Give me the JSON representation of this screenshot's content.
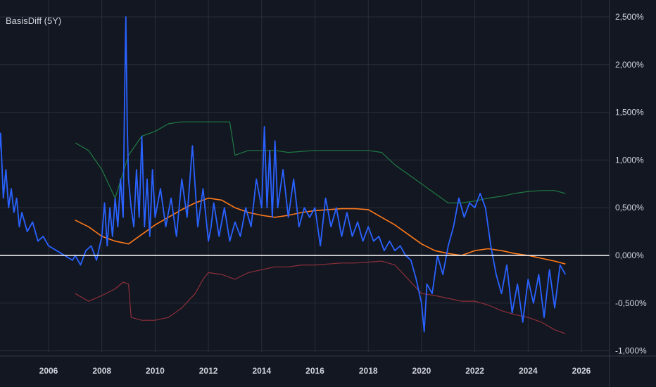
{
  "chart_data": {
    "type": "line",
    "title": "BasisDiff (5Y)",
    "y_unit": "%",
    "ylim": [
      -1.0,
      2.6
    ],
    "xlim": [
      2004.0,
      2027.0
    ],
    "y_ticks": [
      "2,500%",
      "2,000%",
      "1,500%",
      "1,000%",
      "0,500%",
      "0,000%",
      "-0,500%",
      "-1,000%"
    ],
    "y_tick_values": [
      2.5,
      2.0,
      1.5,
      1.0,
      0.5,
      0.0,
      -0.5,
      -1.0
    ],
    "x_ticks": [
      "2006",
      "2008",
      "2010",
      "2012",
      "2014",
      "2016",
      "2018",
      "2020",
      "2022",
      "2024",
      "2026"
    ],
    "x_tick_values": [
      2006,
      2008,
      2010,
      2012,
      2014,
      2016,
      2018,
      2020,
      2022,
      2024,
      2026
    ],
    "grid": true,
    "zero_line": 0.0,
    "colors": {
      "background": "#131722",
      "grid": "#2a2e39",
      "text": "#d1d4dc",
      "basis": "#2962ff",
      "mean": "#ff7a1a",
      "upper": "#1f7a44",
      "lower": "#8c2f39",
      "zero": "#ffffff"
    },
    "series": [
      {
        "key": "upper",
        "x": [
          2007.0,
          2007.5,
          2008.0,
          2008.5,
          2009.0,
          2009.5,
          2010.0,
          2010.5,
          2011.0,
          2011.5,
          2012.0,
          2012.5,
          2012.8,
          2013.0,
          2013.5,
          2014.0,
          2014.5,
          2015.0,
          2016.0,
          2017.0,
          2017.5,
          2018.0,
          2018.5,
          2019.0,
          2019.5,
          2020.0,
          2020.5,
          2021.0,
          2021.5,
          2022.0,
          2022.5,
          2023.0,
          2023.5,
          2024.0,
          2024.5,
          2025.0,
          2025.4
        ],
        "y": [
          1.18,
          1.1,
          0.9,
          0.6,
          1.05,
          1.25,
          1.3,
          1.38,
          1.4,
          1.4,
          1.4,
          1.4,
          1.4,
          1.05,
          1.1,
          1.1,
          1.1,
          1.08,
          1.1,
          1.1,
          1.1,
          1.1,
          1.08,
          0.95,
          0.85,
          0.75,
          0.65,
          0.55,
          0.55,
          0.57,
          0.6,
          0.62,
          0.65,
          0.67,
          0.68,
          0.68,
          0.65
        ]
      },
      {
        "key": "mean",
        "x": [
          2007.0,
          2007.5,
          2008.0,
          2008.5,
          2009.0,
          2009.5,
          2010.0,
          2010.5,
          2011.0,
          2011.5,
          2012.0,
          2012.5,
          2013.0,
          2013.5,
          2014.0,
          2014.5,
          2015.0,
          2015.5,
          2016.0,
          2016.5,
          2017.0,
          2017.5,
          2018.0,
          2018.5,
          2019.0,
          2019.5,
          2020.0,
          2020.5,
          2021.0,
          2021.5,
          2022.0,
          2022.5,
          2023.0,
          2023.5,
          2024.0,
          2024.5,
          2025.0,
          2025.4
        ],
        "y": [
          0.37,
          0.3,
          0.2,
          0.15,
          0.12,
          0.22,
          0.32,
          0.4,
          0.48,
          0.55,
          0.6,
          0.58,
          0.5,
          0.45,
          0.42,
          0.4,
          0.42,
          0.45,
          0.47,
          0.48,
          0.49,
          0.49,
          0.48,
          0.4,
          0.32,
          0.22,
          0.12,
          0.05,
          0.02,
          0.0,
          0.05,
          0.07,
          0.05,
          0.02,
          0.0,
          -0.03,
          -0.06,
          -0.09
        ]
      },
      {
        "key": "lower",
        "x": [
          2007.0,
          2007.5,
          2008.0,
          2008.5,
          2008.8,
          2009.0,
          2009.1,
          2009.5,
          2010.0,
          2010.5,
          2011.0,
          2011.5,
          2011.8,
          2012.0,
          2012.5,
          2013.0,
          2013.5,
          2014.0,
          2014.5,
          2015.0,
          2015.5,
          2016.0,
          2016.5,
          2017.0,
          2017.5,
          2018.0,
          2018.5,
          2019.0,
          2019.5,
          2020.0,
          2020.5,
          2021.0,
          2021.5,
          2022.0,
          2022.5,
          2023.0,
          2023.5,
          2024.0,
          2024.5,
          2025.0,
          2025.4
        ],
        "y": [
          -0.4,
          -0.48,
          -0.42,
          -0.35,
          -0.28,
          -0.3,
          -0.65,
          -0.68,
          -0.68,
          -0.65,
          -0.55,
          -0.4,
          -0.25,
          -0.18,
          -0.2,
          -0.25,
          -0.18,
          -0.15,
          -0.12,
          -0.12,
          -0.1,
          -0.1,
          -0.09,
          -0.08,
          -0.08,
          -0.07,
          -0.06,
          -0.1,
          -0.25,
          -0.4,
          -0.42,
          -0.45,
          -0.48,
          -0.48,
          -0.52,
          -0.58,
          -0.62,
          -0.65,
          -0.7,
          -0.78,
          -0.82
        ]
      },
      {
        "key": "basis",
        "x": [
          2004.0,
          2004.1,
          2004.2,
          2004.3,
          2004.4,
          2004.5,
          2004.6,
          2004.7,
          2004.8,
          2004.9,
          2005.0,
          2005.2,
          2005.4,
          2005.6,
          2005.8,
          2006.0,
          2006.3,
          2006.6,
          2006.9,
          2007.0,
          2007.2,
          2007.4,
          2007.6,
          2007.8,
          2008.0,
          2008.1,
          2008.2,
          2008.3,
          2008.4,
          2008.5,
          2008.6,
          2008.7,
          2008.8,
          2008.85,
          2008.9,
          2008.95,
          2009.0,
          2009.1,
          2009.2,
          2009.3,
          2009.4,
          2009.5,
          2009.6,
          2009.7,
          2009.8,
          2009.9,
          2010.0,
          2010.2,
          2010.4,
          2010.6,
          2010.8,
          2011.0,
          2011.2,
          2011.4,
          2011.6,
          2011.8,
          2012.0,
          2012.1,
          2012.2,
          2012.4,
          2012.6,
          2012.8,
          2013.0,
          2013.2,
          2013.4,
          2013.6,
          2013.8,
          2014.0,
          2014.1,
          2014.2,
          2014.3,
          2014.4,
          2014.5,
          2014.6,
          2014.8,
          2015.0,
          2015.2,
          2015.4,
          2015.6,
          2015.8,
          2016.0,
          2016.2,
          2016.4,
          2016.6,
          2016.8,
          2017.0,
          2017.2,
          2017.4,
          2017.6,
          2017.8,
          2018.0,
          2018.2,
          2018.4,
          2018.6,
          2018.8,
          2019.0,
          2019.2,
          2019.4,
          2019.6,
          2019.8,
          2020.0,
          2020.1,
          2020.2,
          2020.4,
          2020.6,
          2020.8,
          2021.0,
          2021.2,
          2021.4,
          2021.6,
          2021.8,
          2022.0,
          2022.2,
          2022.4,
          2022.6,
          2022.8,
          2023.0,
          2023.2,
          2023.4,
          2023.6,
          2023.8,
          2024.0,
          2024.2,
          2024.4,
          2024.6,
          2024.8,
          2025.0,
          2025.2,
          2025.4
        ],
        "y": [
          1.15,
          0.85,
          1.28,
          0.6,
          0.9,
          0.5,
          0.7,
          0.45,
          0.6,
          0.3,
          0.45,
          0.25,
          0.35,
          0.15,
          0.2,
          0.1,
          0.05,
          0.0,
          -0.05,
          0.0,
          -0.1,
          0.05,
          0.1,
          -0.05,
          0.2,
          0.55,
          0.1,
          0.5,
          0.2,
          0.6,
          0.3,
          0.8,
          0.4,
          1.6,
          2.5,
          1.4,
          0.8,
          0.5,
          0.3,
          0.9,
          0.4,
          1.25,
          0.3,
          0.8,
          0.2,
          0.9,
          0.4,
          0.7,
          0.3,
          0.6,
          0.2,
          0.8,
          0.4,
          1.15,
          0.3,
          0.7,
          0.15,
          0.3,
          0.55,
          0.2,
          0.5,
          0.15,
          0.35,
          0.2,
          0.5,
          0.3,
          0.8,
          0.5,
          1.35,
          0.5,
          1.1,
          0.4,
          1.2,
          0.5,
          0.9,
          0.4,
          0.8,
          0.3,
          0.5,
          0.4,
          0.5,
          0.1,
          0.6,
          0.3,
          0.5,
          0.2,
          0.45,
          0.2,
          0.35,
          0.15,
          0.3,
          0.15,
          0.2,
          0.05,
          0.15,
          0.05,
          0.1,
          0.0,
          -0.05,
          -0.25,
          -0.5,
          -0.8,
          -0.3,
          -0.4,
          0.0,
          -0.2,
          0.1,
          0.3,
          0.6,
          0.4,
          0.55,
          0.5,
          0.65,
          0.5,
          0.1,
          -0.2,
          -0.4,
          -0.1,
          -0.6,
          -0.3,
          -0.7,
          -0.25,
          -0.5,
          -0.2,
          -0.65,
          -0.15,
          -0.55,
          -0.1,
          -0.2
        ]
      }
    ]
  }
}
